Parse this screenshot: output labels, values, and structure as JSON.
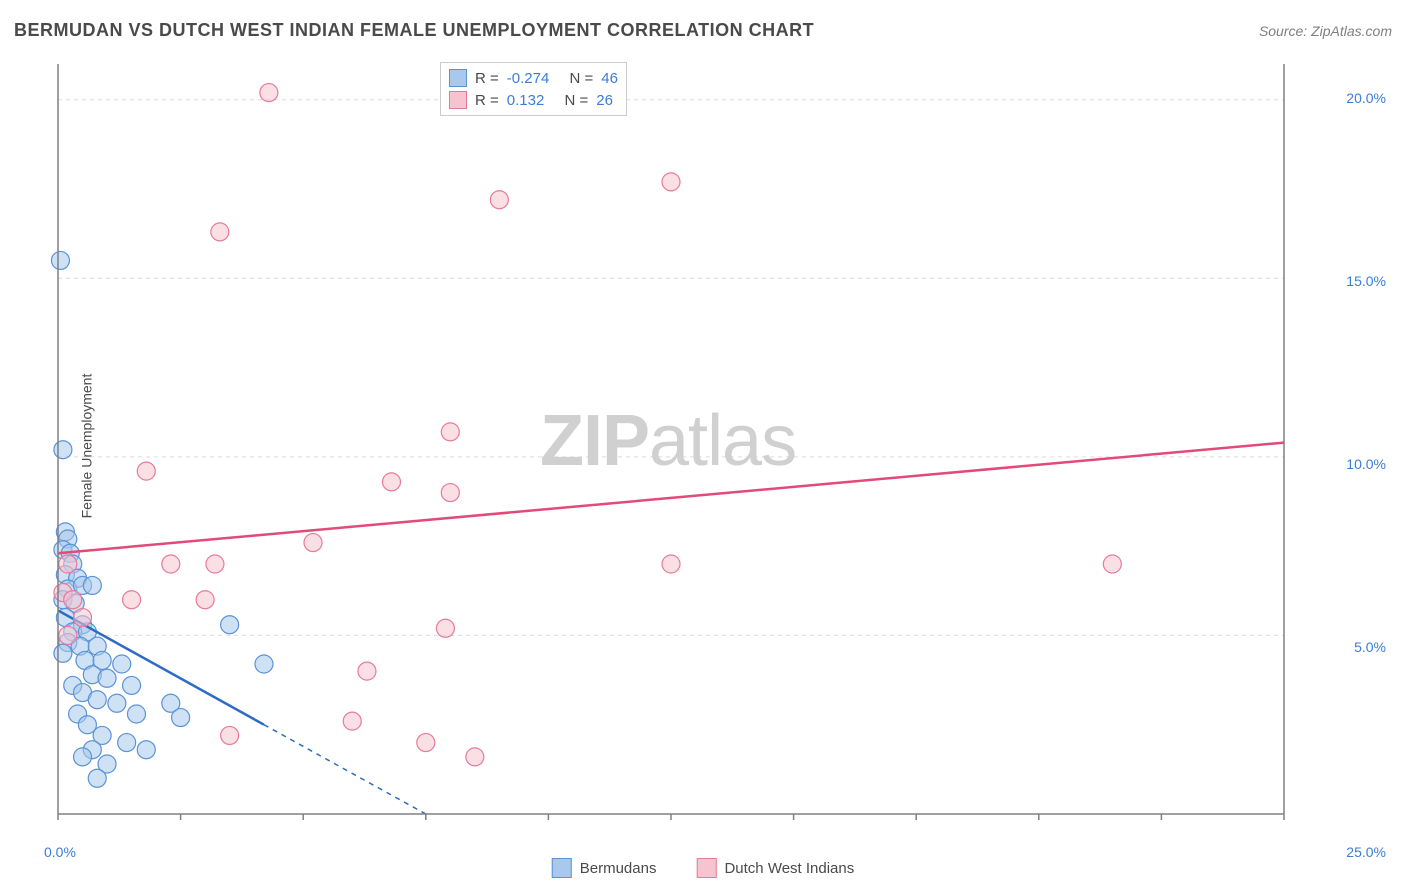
{
  "header": {
    "title": "BERMUDAN VS DUTCH WEST INDIAN FEMALE UNEMPLOYMENT CORRELATION CHART",
    "source": "Source: ZipAtlas.com"
  },
  "watermark": {
    "zip": "ZIP",
    "atlas": "atlas"
  },
  "y_axis_label": "Female Unemployment",
  "chart": {
    "type": "scatter",
    "xlim": [
      0,
      25
    ],
    "ylim": [
      0,
      21
    ],
    "background_color": "#ffffff",
    "grid_color": "#dcdcdc",
    "axis_color": "#808080",
    "x_ticks": [
      0,
      2.5,
      5,
      7.5,
      10,
      12.5,
      15,
      17.5,
      20,
      22.5,
      25
    ],
    "y_gridlines": [
      5,
      10,
      15,
      20
    ],
    "x_tick_labels": {
      "0": "0.0%",
      "25": "25.0%"
    },
    "y_tick_labels": {
      "5": "5.0%",
      "10": "10.0%",
      "15": "15.0%",
      "20": "20.0%"
    },
    "marker_radius": 9,
    "marker_opacity": 0.55,
    "series": [
      {
        "name": "Bermudans",
        "color_fill": "#a8c8ec",
        "color_stroke": "#5a93d6",
        "trend_color": "#2d6bc4",
        "trend": {
          "x1": 0,
          "y1": 5.7,
          "x2": 4.2,
          "y2": 2.5
        },
        "trend_dash": {
          "x1": 4.2,
          "y1": 2.5,
          "x2": 7.5,
          "y2": 0
        },
        "points": [
          [
            0.05,
            15.5
          ],
          [
            0.1,
            10.2
          ],
          [
            0.15,
            7.9
          ],
          [
            0.2,
            7.7
          ],
          [
            0.1,
            7.4
          ],
          [
            0.25,
            7.3
          ],
          [
            0.3,
            7.0
          ],
          [
            0.15,
            6.7
          ],
          [
            0.4,
            6.6
          ],
          [
            0.2,
            6.3
          ],
          [
            0.5,
            6.4
          ],
          [
            0.1,
            6.0
          ],
          [
            0.35,
            5.9
          ],
          [
            0.15,
            5.5
          ],
          [
            0.7,
            6.4
          ],
          [
            0.5,
            5.3
          ],
          [
            0.3,
            5.1
          ],
          [
            0.6,
            5.1
          ],
          [
            0.2,
            4.8
          ],
          [
            0.45,
            4.7
          ],
          [
            0.8,
            4.7
          ],
          [
            0.1,
            4.5
          ],
          [
            0.55,
            4.3
          ],
          [
            0.9,
            4.3
          ],
          [
            1.3,
            4.2
          ],
          [
            0.7,
            3.9
          ],
          [
            1.0,
            3.8
          ],
          [
            0.3,
            3.6
          ],
          [
            1.5,
            3.6
          ],
          [
            0.5,
            3.4
          ],
          [
            0.8,
            3.2
          ],
          [
            1.2,
            3.1
          ],
          [
            2.3,
            3.1
          ],
          [
            0.4,
            2.8
          ],
          [
            1.6,
            2.8
          ],
          [
            0.6,
            2.5
          ],
          [
            2.5,
            2.7
          ],
          [
            0.9,
            2.2
          ],
          [
            1.4,
            2.0
          ],
          [
            0.7,
            1.8
          ],
          [
            1.8,
            1.8
          ],
          [
            4.2,
            4.2
          ],
          [
            0.5,
            1.6
          ],
          [
            1.0,
            1.4
          ],
          [
            0.8,
            1.0
          ],
          [
            3.5,
            5.3
          ]
        ]
      },
      {
        "name": "Dutch West Indians",
        "color_fill": "#f6c4d0",
        "color_stroke": "#e87a9a",
        "trend_color": "#e24a7a",
        "trend": {
          "x1": 0,
          "y1": 7.3,
          "x2": 25,
          "y2": 10.4
        },
        "points": [
          [
            0.2,
            7.0
          ],
          [
            0.1,
            6.2
          ],
          [
            0.3,
            6.0
          ],
          [
            0.5,
            5.5
          ],
          [
            0.2,
            5.0
          ],
          [
            1.5,
            6.0
          ],
          [
            1.8,
            9.6
          ],
          [
            2.3,
            7.0
          ],
          [
            3.2,
            7.0
          ],
          [
            3.0,
            6.0
          ],
          [
            3.5,
            2.2
          ],
          [
            3.3,
            16.3
          ],
          [
            4.3,
            20.2
          ],
          [
            5.2,
            7.6
          ],
          [
            6.0,
            2.6
          ],
          [
            6.3,
            4.0
          ],
          [
            6.8,
            9.3
          ],
          [
            7.5,
            2.0
          ],
          [
            8.0,
            9.0
          ],
          [
            7.9,
            5.2
          ],
          [
            8.5,
            1.6
          ],
          [
            8.0,
            10.7
          ],
          [
            9.0,
            17.2
          ],
          [
            12.5,
            17.7
          ],
          [
            12.5,
            7.0
          ],
          [
            21.5,
            7.0
          ]
        ]
      }
    ]
  },
  "stats": [
    {
      "swatch_fill": "#a8c8ec",
      "swatch_stroke": "#5a93d6",
      "r_label": "R =",
      "r_val": "-0.274",
      "n_label": "N =",
      "n_val": "46"
    },
    {
      "swatch_fill": "#f6c4d0",
      "swatch_stroke": "#e87a9a",
      "r_label": "R =",
      "r_val": " 0.132",
      "n_label": "N =",
      "n_val": "26"
    }
  ],
  "legend": [
    {
      "swatch_fill": "#a8c8ec",
      "swatch_stroke": "#5a93d6",
      "label": "Bermudans"
    },
    {
      "swatch_fill": "#f6c4d0",
      "swatch_stroke": "#e87a9a",
      "label": "Dutch West Indians"
    }
  ]
}
